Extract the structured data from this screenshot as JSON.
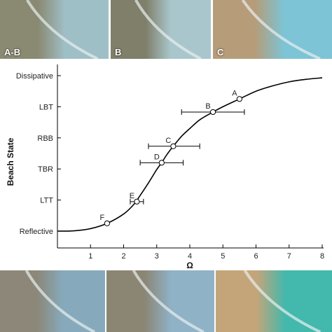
{
  "photos_top": [
    {
      "label": "A-B",
      "sky": "#9fbfc7",
      "sand": "#8a8a72"
    },
    {
      "label": "B",
      "sky": "#a9c6cc",
      "sand": "#7f7f6a"
    },
    {
      "label": "C",
      "sky": "#7cc4d6",
      "sand": "#b69c78"
    }
  ],
  "photos_bottom": [
    {
      "label": "",
      "sky": "#86aabb",
      "sand": "#8c8778"
    },
    {
      "label": "",
      "sky": "#8fb2c6",
      "sand": "#8b8574"
    },
    {
      "label": "",
      "sky": "#43b8ad",
      "sand": "#c4a57a"
    }
  ],
  "chart_data": {
    "type": "line",
    "xlabel": "Ω",
    "ylabel": "Beach State",
    "xlim": [
      0,
      8
    ],
    "xticks": [
      1,
      2,
      3,
      4,
      5,
      6,
      7,
      8
    ],
    "ylim": [
      0,
      5
    ],
    "y_categories": [
      "Reflective",
      "LTT",
      "TBR",
      "RBB",
      "LBT",
      "Dissipative"
    ],
    "curve": {
      "x": [
        0,
        0.5,
        1.0,
        1.5,
        2.0,
        2.3,
        2.5,
        2.75,
        3.0,
        3.15,
        3.3,
        3.5,
        3.75,
        4.0,
        4.3,
        4.7,
        5.0,
        5.5,
        6.0,
        6.5,
        7.0,
        7.5,
        8.0
      ],
      "y": [
        0.0,
        0.01,
        0.08,
        0.25,
        0.55,
        0.85,
        1.15,
        1.55,
        1.98,
        2.2,
        2.45,
        2.73,
        3.05,
        3.3,
        3.58,
        3.83,
        4.0,
        4.25,
        4.5,
        4.67,
        4.8,
        4.88,
        4.93
      ]
    },
    "points": [
      {
        "label": "A",
        "x": 5.5,
        "y": 4.25
      },
      {
        "label": "B",
        "x": 4.7,
        "y": 3.83,
        "xerr": [
          3.75,
          5.65
        ]
      },
      {
        "label": "C",
        "x": 3.5,
        "y": 2.73,
        "xerr": [
          2.75,
          4.3
        ]
      },
      {
        "label": "D",
        "x": 3.15,
        "y": 2.2,
        "xerr": [
          2.5,
          3.8
        ]
      },
      {
        "label": "E",
        "x": 2.4,
        "y": 0.95,
        "xerr": [
          2.2,
          2.6
        ]
      },
      {
        "label": "F",
        "x": 1.5,
        "y": 0.25
      }
    ],
    "colors": {
      "line": "#000000",
      "marker_fill": "#ffffff"
    }
  }
}
